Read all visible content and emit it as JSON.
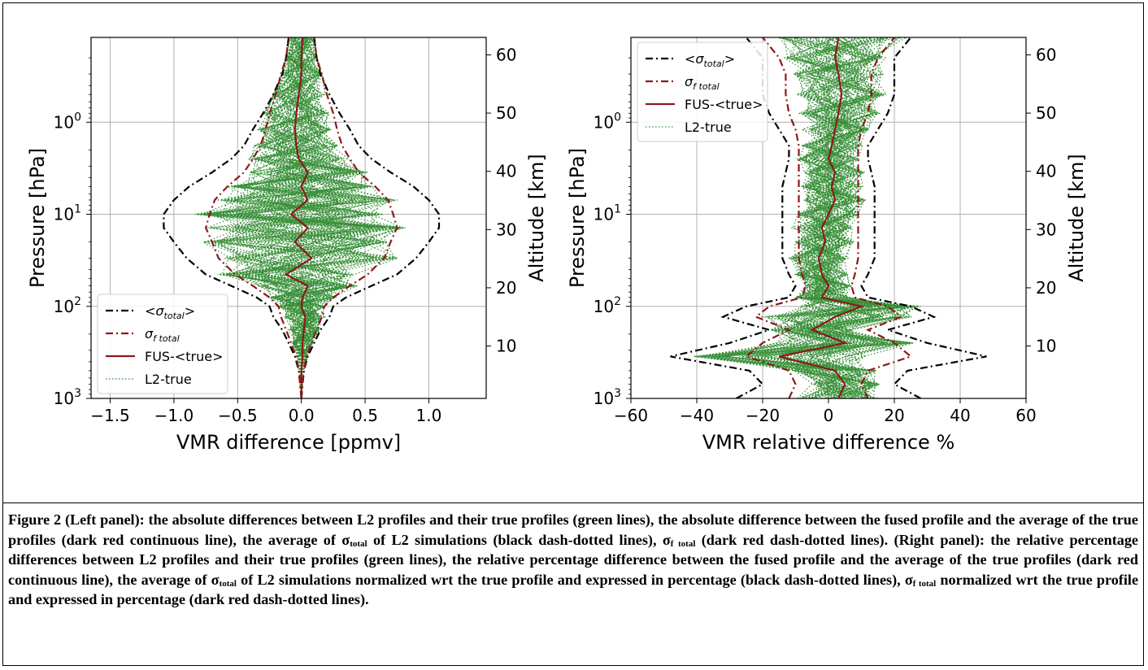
{
  "chart_data": [
    {
      "panel": "left",
      "type": "line",
      "xlabel": "VMR difference [ppmv]",
      "ylabel": "Pressure [hPa]",
      "ylabel_right": "Altitude [km]",
      "xlim": [
        -1.65,
        1.45
      ],
      "ylim_pressure_log": [
        1000,
        0.12
      ],
      "ylim_altitude_km": [
        1,
        63
      ],
      "x_ticks": [
        "−1.5",
        "−1.0",
        "−0.5",
        "0.0",
        "0.5",
        "1.0"
      ],
      "x_tick_values": [
        -1.5,
        -1.0,
        -0.5,
        0.0,
        0.5,
        1.0
      ],
      "y_ticks": [
        {
          "value": 1,
          "base": "10",
          "exp": "0"
        },
        {
          "value": 10,
          "base": "10",
          "exp": "1"
        },
        {
          "value": 100,
          "base": "10",
          "exp": "2"
        },
        {
          "value": 1000,
          "base": "10",
          "exp": "3"
        }
      ],
      "alt_ticks": [
        "10",
        "20",
        "30",
        "40",
        "50",
        "60"
      ],
      "alt_tick_values": [
        10,
        20,
        30,
        40,
        50,
        60
      ],
      "grid": true,
      "legend_position": "lower-left",
      "pressure": [
        1000,
        700,
        500,
        350,
        250,
        180,
        130,
        100,
        80,
        60,
        45,
        30,
        20,
        14,
        10,
        7,
        5,
        3.5,
        2.5,
        1.8,
        1.2,
        0.8,
        0.5,
        0.3,
        0.2,
        0.12
      ],
      "series": [
        {
          "name_main": "<σ",
          "name_sub": "total",
          "name_tail": ">",
          "color": "#000000",
          "style": "dashdot",
          "width": 2.2,
          "values": [
            0.0,
            0.01,
            0.02,
            0.05,
            0.1,
            0.15,
            0.22,
            0.25,
            0.35,
            0.55,
            0.75,
            0.9,
            1.0,
            1.08,
            1.08,
            1.0,
            0.88,
            0.7,
            0.55,
            0.45,
            0.38,
            0.3,
            0.22,
            0.15,
            0.12,
            0.1
          ],
          "symmetric": true
        },
        {
          "name_main": "σ",
          "name_sub": "f total",
          "name_tail": "",
          "color": "#8b1a1a",
          "style": "dashdot",
          "width": 2.2,
          "values": [
            0.0,
            0.01,
            0.02,
            0.04,
            0.08,
            0.12,
            0.16,
            0.18,
            0.25,
            0.38,
            0.52,
            0.65,
            0.7,
            0.75,
            0.72,
            0.68,
            0.58,
            0.45,
            0.38,
            0.32,
            0.28,
            0.25,
            0.2,
            0.16,
            0.12,
            0.1
          ],
          "symmetric": true
        },
        {
          "name_main": "FUS-<true>",
          "name_sub": "",
          "name_tail": "",
          "color": "#8b1a1a",
          "style": "solid",
          "width": 2.2,
          "values": [
            0.0,
            0.0,
            0.0,
            0.01,
            0.01,
            0.02,
            0.03,
            0.0,
            0.01,
            0.05,
            -0.12,
            0.08,
            -0.05,
            0.05,
            -0.08,
            0.05,
            0.0,
            0.05,
            -0.02,
            -0.04,
            -0.05,
            -0.04,
            -0.02,
            0.0,
            0.0,
            0.01
          ],
          "symmetric": false
        },
        {
          "name_main": "L2-true",
          "name_sub": "",
          "name_tail": "",
          "color": "#2e8b2e",
          "style": "dotted",
          "width": 1.2,
          "values": [],
          "symmetric": false
        }
      ]
    },
    {
      "panel": "right",
      "type": "line",
      "xlabel": "VMR relative difference %",
      "ylabel": "Pressure [hPa]",
      "ylabel_right": "Altitude [km]",
      "xlim": [
        -60,
        60
      ],
      "ylim_pressure_log": [
        1000,
        0.12
      ],
      "ylim_altitude_km": [
        1,
        63
      ],
      "x_ticks": [
        "−60",
        "−40",
        "−20",
        "0",
        "20",
        "40",
        "60"
      ],
      "x_tick_values": [
        -60,
        -40,
        -20,
        0,
        20,
        40,
        60
      ],
      "y_ticks": [
        {
          "value": 1,
          "base": "10",
          "exp": "0"
        },
        {
          "value": 10,
          "base": "10",
          "exp": "1"
        },
        {
          "value": 100,
          "base": "10",
          "exp": "2"
        },
        {
          "value": 1000,
          "base": "10",
          "exp": "3"
        }
      ],
      "alt_ticks": [
        "10",
        "20",
        "30",
        "40",
        "50",
        "60"
      ],
      "alt_tick_values": [
        10,
        20,
        30,
        40,
        50,
        60
      ],
      "grid": true,
      "legend_position": "upper-left",
      "pressure": [
        1000,
        700,
        500,
        350,
        250,
        180,
        130,
        100,
        80,
        60,
        45,
        30,
        20,
        14,
        10,
        7,
        5,
        3.5,
        2.5,
        1.8,
        1.2,
        0.8,
        0.5,
        0.3,
        0.2,
        0.12
      ],
      "series": [
        {
          "name_main": "<σ",
          "name_sub": "total",
          "name_tail": ">",
          "color": "#000000",
          "style": "dashdot",
          "width": 2.2,
          "values": [
            28,
            20,
            24,
            48,
            30,
            18,
            32,
            25,
            12,
            10,
            12,
            14,
            14,
            14,
            14,
            14,
            14,
            13,
            12,
            12,
            15,
            18,
            20,
            20,
            20,
            25
          ],
          "symmetric": true
        },
        {
          "name_main": "σ",
          "name_sub": "f total",
          "name_tail": "",
          "color": "#8b1a1a",
          "style": "dashdot",
          "width": 2.2,
          "values": [
            12,
            10,
            12,
            25,
            20,
            12,
            22,
            18,
            8,
            7,
            8,
            9,
            9,
            9,
            9,
            9,
            9,
            9,
            9,
            9,
            10,
            12,
            13,
            13,
            15,
            20
          ],
          "symmetric": true
        },
        {
          "name_main": "FUS-<true>",
          "name_sub": "",
          "name_tail": "",
          "color": "#8b1a1a",
          "style": "solid",
          "width": 2.2,
          "values": [
            3,
            5,
            2,
            -15,
            5,
            -5,
            2,
            10,
            -2,
            0,
            -2,
            -3,
            -1,
            -2,
            0,
            2,
            1,
            2,
            0,
            1,
            2,
            3,
            4,
            3,
            2,
            3
          ],
          "symmetric": false
        },
        {
          "name_main": "L2-true",
          "name_sub": "",
          "name_tail": "",
          "color": "#2e8b2e",
          "style": "dotted",
          "width": 1.2,
          "values": [],
          "symmetric": false
        }
      ]
    }
  ],
  "caption": {
    "s1": "Figure 2 (Left panel): the absolute differences between L2 profiles and their true profiles (green lines), the absolute difference between the fused profile and the average of the true profiles (dark red continuous line), the average of σ",
    "s1_sub": "total",
    "s2": " of L2 simulations (black dash-dotted lines), σ",
    "s2_sub": "f total",
    "s3": " (dark red dash-dotted lines). (Right panel): the relative percentage differences between L2 profiles and their true profiles (green lines), the relative percentage difference between the fused profile and the average of the true profiles (dark red continuous line), the average of σ",
    "s3_sub": "total",
    "s4": " of L2 simulations normalized wrt the true profile and expressed in percentage (black dash-dotted lines), σ",
    "s4_sub": "f total",
    "s5": " normalized wrt the true profile and expressed in percentage (dark red dash-dotted lines)."
  }
}
